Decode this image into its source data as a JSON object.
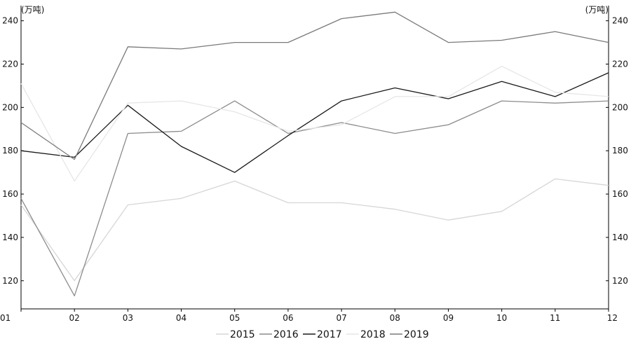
{
  "chart_data": {
    "type": "line",
    "title": "",
    "left_unit": "(万吨)",
    "right_unit": "(万吨)",
    "categories": [
      "01",
      "02",
      "03",
      "04",
      "05",
      "06",
      "07",
      "08",
      "09",
      "10",
      "11",
      "12"
    ],
    "ylim": [
      107,
      247
    ],
    "yticks": [
      120,
      140,
      160,
      180,
      200,
      220,
      240
    ],
    "grid": false,
    "legend_position": "bottom",
    "series": [
      {
        "name": "2015",
        "color": "#d6d6d6",
        "values": [
          155,
          120,
          155,
          158,
          166,
          156,
          156,
          153,
          148,
          152,
          167,
          164
        ]
      },
      {
        "name": "2016",
        "color": "#8c8c8c",
        "values": [
          158,
          113,
          188,
          189,
          203,
          188,
          193,
          188,
          192,
          203,
          202,
          203
        ]
      },
      {
        "name": "2017",
        "color": "#1a1a1a",
        "values": [
          180,
          177,
          201,
          182,
          170,
          187,
          203,
          209,
          204,
          212,
          205,
          216
        ]
      },
      {
        "name": "2018",
        "color": "#e6e6e6",
        "values": [
          211,
          166,
          202,
          203,
          198,
          189,
          192,
          205,
          205,
          219,
          207,
          205
        ]
      },
      {
        "name": "2019",
        "color": "#7a7a7a",
        "values": [
          193,
          176,
          228,
          227,
          230,
          230,
          241,
          244,
          230,
          231,
          235,
          230
        ]
      }
    ]
  }
}
